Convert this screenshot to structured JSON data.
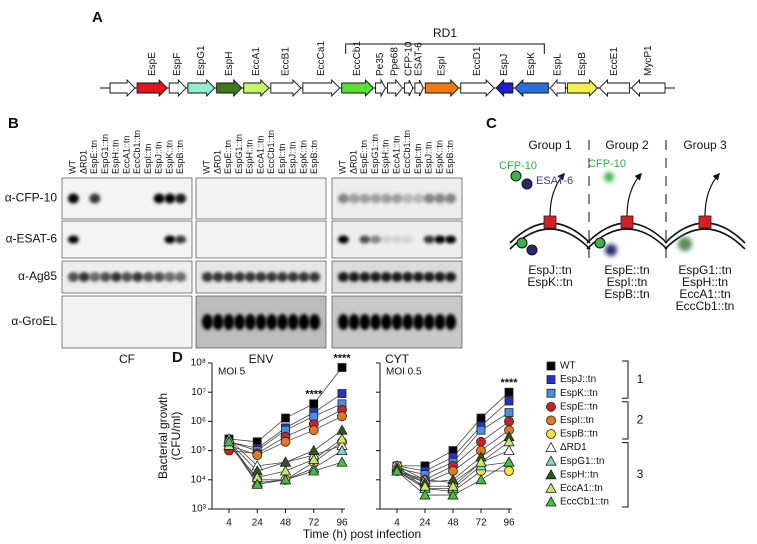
{
  "panel_labels": [
    "A",
    "B",
    "C",
    "D"
  ],
  "operon": {
    "region": "RD1",
    "genes": [
      {
        "label": "EspE",
        "color": "#e3151a"
      },
      {
        "label": "EspF",
        "color": "#ffffff"
      },
      {
        "label": "EspG1",
        "color": "#8ef0d0"
      },
      {
        "label": "EspH",
        "color": "#3d7a1e"
      },
      {
        "label": "EccA1",
        "color": "#c6f56a"
      },
      {
        "label": "EccB1",
        "color": "#ffffff"
      },
      {
        "label": "EccCa1",
        "color": "#ffffff"
      },
      {
        "label": "EccCb1",
        "color": "#55e032"
      },
      {
        "label": "Pe35",
        "color": "#ffffff"
      },
      {
        "label": "Ppe68",
        "color": "#ffffff"
      },
      {
        "label": "CFP-10",
        "color": "#ffffff"
      },
      {
        "label": "ESAT-6",
        "color": "#ffffff"
      },
      {
        "label": "EspI",
        "color": "#f07a10"
      },
      {
        "label": "EccD1",
        "color": "#ffffff"
      },
      {
        "label": "EspJ",
        "color": "#2020d0"
      },
      {
        "label": "EspK",
        "color": "#2a6ee0"
      },
      {
        "label": "EspL",
        "color": "#ffffff"
      },
      {
        "label": "EspB",
        "color": "#f2f04a"
      },
      {
        "label": "EccE1",
        "color": "#ffffff"
      },
      {
        "label": "MycP1",
        "color": "#ffffff"
      }
    ]
  },
  "blot": {
    "lanes": [
      "WT",
      "ΔRD1",
      "EspE::tn",
      "EspG1::tn",
      "EspH::tn",
      "EccA1::tn",
      "EccCb1::tn",
      "EspI::tn",
      "EspJ::tn",
      "EspK::tn",
      "EspB::tn"
    ],
    "antibodies": [
      "α-CFP-10",
      "α-ESAT-6",
      "α-Ag85",
      "α-GroEL"
    ],
    "fractions": [
      "CF",
      "ENV",
      "CYT"
    ]
  },
  "model": {
    "groups": [
      {
        "title": "Group 1",
        "labels": [
          "CFP-10",
          "ESAT-6"
        ],
        "strains": [
          "EspJ::tn",
          "EspK::tn"
        ]
      },
      {
        "title": "Group 2",
        "labels": [
          "CFP-10"
        ],
        "strains": [
          "EspE::tn",
          "EspI::tn",
          "EspB::tn"
        ]
      },
      {
        "title": "Group 3",
        "labels": [],
        "strains": [
          "EspG1::tn",
          "EspH::tn",
          "EccA1::tn",
          "EccCb1::tn"
        ]
      }
    ]
  },
  "chart_data": [
    {
      "type": "line",
      "title": "MOI 5",
      "ylabel": [
        "Bacterial growth",
        "(CFU/ml)"
      ],
      "xlabel": "Time (h) post infection",
      "log_y": true,
      "categories": [
        "4",
        "24",
        "48",
        "72",
        "96"
      ],
      "ylim": [
        1000,
        100000000
      ],
      "yticks": [
        {
          "value": 1000,
          "label": "10³"
        },
        {
          "value": 10000,
          "label": "10⁴"
        },
        {
          "value": 100000,
          "label": "10⁵"
        },
        {
          "value": 1000000,
          "label": "10⁶"
        },
        {
          "value": 10000000,
          "label": "10⁷"
        },
        {
          "value": 100000000,
          "label": "10⁸"
        }
      ],
      "legend_groups": [
        "1",
        "2",
        "3"
      ],
      "annotations": [
        {
          "text": "****",
          "x": "72"
        },
        {
          "text": "****",
          "x": "96"
        }
      ],
      "series": [
        {
          "name": "WT",
          "color": "#000000",
          "marker": "square",
          "values": [
            250000,
            200000,
            1300000,
            4000000,
            70000000
          ]
        },
        {
          "name": "EspJ::tn",
          "color": "#2233cc",
          "marker": "square",
          "values": [
            200000,
            120000,
            600000,
            2000000,
            9000000
          ]
        },
        {
          "name": "EspK::tn",
          "color": "#4a90e2",
          "marker": "square",
          "values": [
            200000,
            100000,
            500000,
            1500000,
            4000000
          ]
        },
        {
          "name": "EspE::tn",
          "color": "#cc2222",
          "marker": "circle",
          "values": [
            100000,
            80000,
            300000,
            800000,
            2500000
          ]
        },
        {
          "name": "EspI::tn",
          "color": "#e07a22",
          "marker": "circle",
          "values": [
            150000,
            70000,
            200000,
            500000,
            1500000
          ]
        },
        {
          "name": "EspB::tn",
          "color": "#f5e23a",
          "marker": "circle",
          "values": [
            200000,
            10000,
            10000,
            40000,
            200000
          ]
        },
        {
          "name": "ΔRD1",
          "color": "#ffffff",
          "marker": "triangle",
          "values": [
            250000,
            30000,
            40000,
            70000,
            150000
          ]
        },
        {
          "name": "EspG1::tn",
          "color": "#7fd6c8",
          "marker": "triangle",
          "values": [
            200000,
            8000,
            10000,
            25000,
            100000
          ]
        },
        {
          "name": "EspH::tn",
          "color": "#2d5a1a",
          "marker": "triangle",
          "values": [
            200000,
            20000,
            40000,
            100000,
            500000
          ]
        },
        {
          "name": "EccA1::tn",
          "color": "#c8e86a",
          "marker": "triangle",
          "values": [
            150000,
            12000,
            20000,
            50000,
            250000
          ]
        },
        {
          "name": "EccCb1::tn",
          "color": "#44c040",
          "marker": "triangle",
          "values": [
            200000,
            7000,
            10000,
            20000,
            40000
          ]
        }
      ]
    },
    {
      "type": "line",
      "title": "MOI 0.5",
      "log_y": true,
      "categories": [
        "4",
        "24",
        "48",
        "72",
        "96"
      ],
      "ylim": [
        1000,
        100000000
      ],
      "yticks": [
        1000,
        10000,
        100000,
        1000000,
        10000000,
        100000000
      ],
      "annotations": [
        {
          "text": "****",
          "x": "96"
        }
      ],
      "series": [
        {
          "values": [
            30000,
            30000,
            100000,
            1300000,
            10000000
          ]
        },
        {
          "values": [
            30000,
            20000,
            60000,
            700000,
            5000000
          ]
        },
        {
          "values": [
            25000,
            15000,
            40000,
            500000,
            2000000
          ]
        },
        {
          "values": [
            20000,
            10000,
            30000,
            200000,
            1000000
          ]
        },
        {
          "values": [
            20000,
            8000,
            20000,
            100000,
            500000
          ]
        },
        {
          "values": [
            30000,
            5000,
            4000,
            20000,
            20000
          ]
        },
        {
          "values": [
            30000,
            10000,
            8000,
            40000,
            100000
          ]
        },
        {
          "values": [
            20000,
            5000,
            5000,
            30000,
            40000
          ]
        },
        {
          "values": [
            25000,
            8000,
            10000,
            60000,
            300000
          ]
        },
        {
          "values": [
            20000,
            6000,
            6000,
            40000,
            200000
          ]
        },
        {
          "values": [
            20000,
            3000,
            3000,
            10000,
            40000
          ]
        }
      ]
    }
  ]
}
